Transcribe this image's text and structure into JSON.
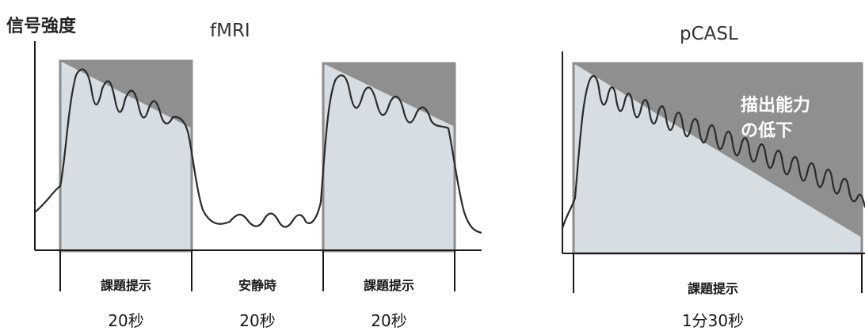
{
  "y_axis_label": "信号強度",
  "fmri": {
    "title": "fMRI",
    "periods": [
      {
        "label": "課題提示",
        "duration": "20秒"
      },
      {
        "label": "安静時",
        "duration": "20秒"
      },
      {
        "label": "課題提示",
        "duration": "20秒"
      }
    ]
  },
  "pcasl": {
    "title": "pCASL",
    "annotation_line1": "描出能力",
    "annotation_line2": "の低下",
    "period": {
      "label": "課題提示",
      "duration": "1分30秒"
    }
  },
  "colors": {
    "task_box_fill": "#d6dde3",
    "task_box_stroke": "#8c8c8c",
    "decline_fill": "#8f8f8f",
    "signal_line": "#2a2a2a",
    "axis": "#1a1a1a"
  }
}
